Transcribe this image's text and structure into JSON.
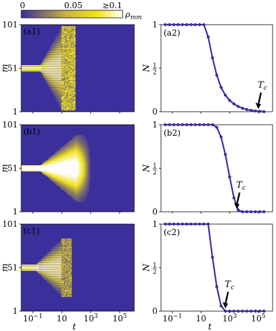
{
  "colorbar": {
    "ticks": [
      "0",
      "0.05",
      "≥0.1"
    ],
    "label": "ρ_mm"
  },
  "chart_data": [
    {
      "panel": "(a1)",
      "type": "heatmap",
      "xlabel": "",
      "ylabel": "m",
      "yticks": [
        "1",
        "51",
        "101"
      ],
      "x_log_range": [
        -1.8,
        6.0
      ],
      "y_range": [
        1,
        101
      ],
      "pattern": "discrete-spread",
      "spread_end_log_t": 1.0,
      "persist_log_t": 1.9
    },
    {
      "panel": "(a2)",
      "type": "line",
      "xlabel": "",
      "ylabel": "N",
      "ytick_labels": [
        "0",
        "1/2",
        "1"
      ],
      "ylim": [
        0,
        1
      ],
      "x_log_range": [
        -1.8,
        6.0
      ],
      "annotation": "T_c",
      "T_c_log": 5.0,
      "x_log": [
        -1.5,
        -1.2,
        -0.9,
        -0.6,
        -0.3,
        0.0,
        0.3,
        0.6,
        0.9,
        1.2,
        1.5,
        1.8,
        2.1,
        2.4,
        2.7,
        3.0,
        3.3,
        3.6,
        3.9,
        4.2,
        4.5,
        4.8,
        5.1,
        5.4
      ],
      "y": [
        1.0,
        1.0,
        1.0,
        1.0,
        1.0,
        1.0,
        1.0,
        1.0,
        1.0,
        1.0,
        0.86,
        0.62,
        0.42,
        0.28,
        0.19,
        0.13,
        0.09,
        0.06,
        0.04,
        0.025,
        0.015,
        0.008,
        0.004,
        0.0
      ]
    },
    {
      "panel": "(b1)",
      "type": "heatmap",
      "xlabel": "",
      "ylabel": "m",
      "yticks": [
        "1",
        "51",
        "101"
      ],
      "x_log_range": [
        -1.8,
        6.0
      ],
      "y_range": [
        1,
        101
      ],
      "pattern": "smooth-spread",
      "spread_end_log_t": 2.0,
      "persist_log_t": 3.0
    },
    {
      "panel": "(b2)",
      "type": "line",
      "xlabel": "",
      "ylabel": "N",
      "ytick_labels": [
        "0",
        "1/2",
        "1"
      ],
      "ylim": [
        0,
        1
      ],
      "x_log_range": [
        -1.8,
        6.0
      ],
      "annotation": "T_c",
      "T_c_log": 3.5,
      "x_log": [
        -1.5,
        -1.2,
        -0.9,
        -0.6,
        -0.3,
        0.0,
        0.3,
        0.6,
        0.9,
        1.2,
        1.5,
        1.8,
        2.1,
        2.4,
        2.7,
        3.0,
        3.3,
        3.6,
        3.9,
        4.2,
        4.5,
        4.8,
        5.1,
        5.4
      ],
      "y": [
        1.0,
        1.0,
        1.0,
        1.0,
        1.0,
        1.0,
        1.0,
        1.0,
        1.0,
        1.0,
        1.0,
        1.0,
        0.97,
        0.86,
        0.66,
        0.4,
        0.16,
        0.02,
        0.0,
        0.0,
        0.0,
        0.0,
        0.0,
        0.0
      ]
    },
    {
      "panel": "(c1)",
      "type": "heatmap",
      "xlabel": "t",
      "ylabel": "m",
      "yticks": [
        "1",
        "51",
        "101"
      ],
      "xtick_labels": [
        "10^-1",
        "10",
        "10^3",
        "10^5"
      ],
      "x_log_range": [
        -1.8,
        6.0
      ],
      "y_range": [
        1,
        101
      ],
      "pattern": "triangle-stripes",
      "spread_end_log_t": 1.0,
      "persist_log_t": 1.7
    },
    {
      "panel": "(c2)",
      "type": "line",
      "xlabel": "t",
      "ylabel": "N",
      "ytick_labels": [
        "0",
        "1/2",
        "1"
      ],
      "xtick_labels": [
        "10^-1",
        "10",
        "10^3",
        "10^5"
      ],
      "ylim": [
        0,
        1
      ],
      "x_log_range": [
        -1.8,
        6.0
      ],
      "annotation": "T_c",
      "T_c_log": 2.7,
      "x_log": [
        -1.5,
        -1.2,
        -0.9,
        -0.6,
        -0.3,
        0.0,
        0.3,
        0.6,
        0.9,
        1.2,
        1.5,
        1.8,
        2.1,
        2.4,
        2.7,
        3.0,
        3.3,
        3.6,
        3.9,
        4.2,
        4.5,
        4.8,
        5.1,
        5.4
      ],
      "y": [
        1.0,
        1.0,
        1.0,
        1.0,
        1.0,
        1.0,
        1.0,
        1.0,
        1.0,
        1.0,
        1.0,
        0.62,
        0.28,
        0.06,
        0.0,
        0.0,
        0.0,
        0.0,
        0.0,
        0.0,
        0.0,
        0.0,
        0.0,
        0.0
      ]
    }
  ],
  "colors": {
    "background": "#3b2f9c",
    "bright": "#ffffff",
    "mid": "#f2e21a",
    "line": "#3a2f9e"
  }
}
